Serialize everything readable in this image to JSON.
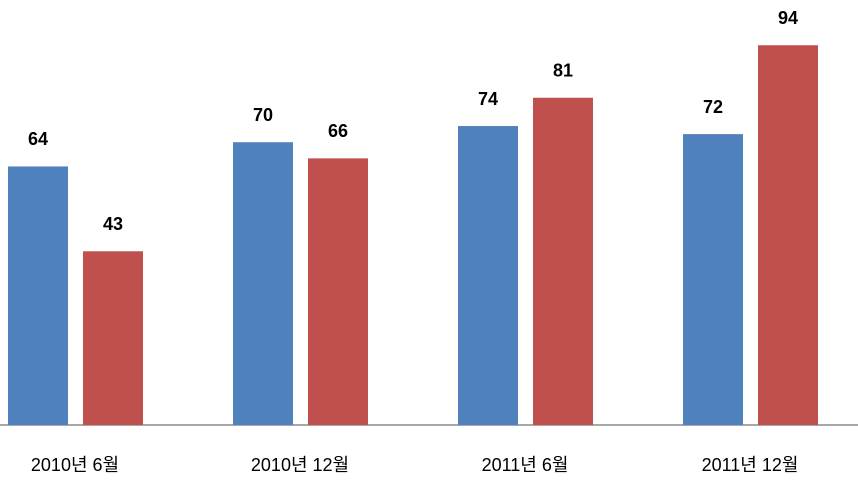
{
  "chart_data": {
    "type": "bar",
    "categories": [
      "2010년 6월",
      "2010년 12월",
      "2011년 6월",
      "2011년 12월"
    ],
    "series": [
      {
        "color": "#4f81bd",
        "values": [
          64,
          70,
          74,
          72
        ]
      },
      {
        "color": "#c0504d",
        "values": [
          43,
          66,
          81,
          94
        ]
      }
    ],
    "ylim": [
      0,
      100
    ]
  }
}
